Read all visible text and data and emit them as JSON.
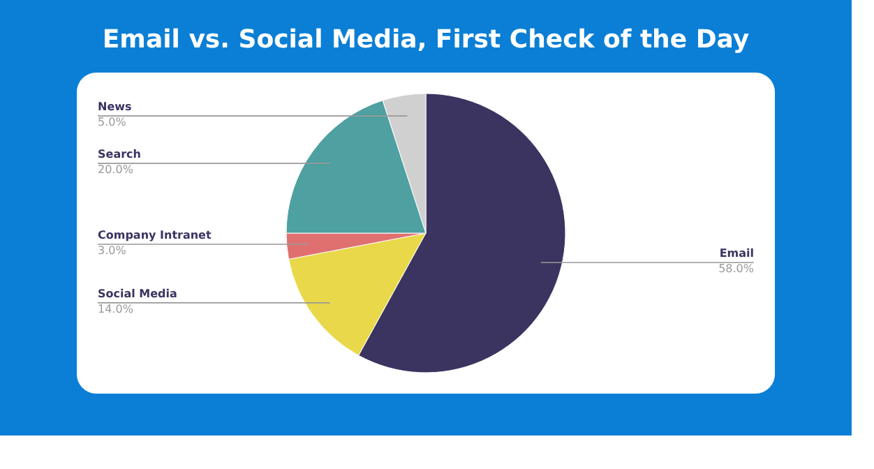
{
  "chart_data": {
    "type": "pie",
    "title": "Email vs. Social Media, First Check of the Day",
    "categories": [
      "Email",
      "Social Media",
      "Company Intranet",
      "Search",
      "News"
    ],
    "values": [
      58,
      14,
      3,
      20,
      5
    ],
    "colors": [
      "#3b3360",
      "#e8d84a",
      "#e07070",
      "#4fa0a0",
      "#d0d0d0"
    ],
    "value_labels": [
      "58.0%",
      "14.0%",
      "3.0%",
      "20.0%",
      "5.0%"
    ]
  }
}
